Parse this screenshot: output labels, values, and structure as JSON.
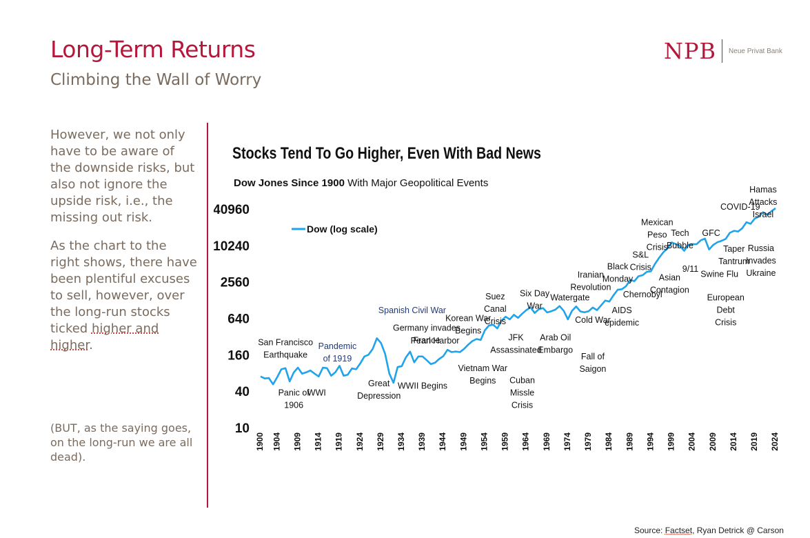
{
  "page": {
    "title": "Long-Term Returns",
    "subtitle": "Climbing the Wall of Worry",
    "logo": {
      "mark": "NPB",
      "name": "Neue Privat Bank"
    },
    "paragraph1": "However, we not only have to be aware of the downside risks, but also not ignore the upside risk, i.e., the missing out risk.",
    "paragraph2_main": "As the chart to the right shows, there have been plentiful excuses to sell, however, over the long-run stocks ticked ",
    "paragraph2_tail": "higher and higher",
    "paragraph2_end": ".",
    "note": "(BUT, as the saying goes, on the long-run we are all dead).",
    "source_prefix": "Source: ",
    "source_link": "Factset",
    "source_suffix": ", Ryan Detrick @ Carson",
    "colors": {
      "brand": "#b5173b",
      "line": "#1fa3ea",
      "body_text": "#7a6b5e"
    }
  },
  "chart_data": {
    "type": "line",
    "title": "Stocks Tend To Go Higher, Even With Bad News",
    "subtitle_bold": "Dow Jones Since 1900",
    "subtitle_rest": " With Major Geopolitical Events",
    "legend": "Dow (log scale)",
    "y_scale": "log",
    "ylim": [
      10,
      40960
    ],
    "y_ticks": [
      10,
      40,
      160,
      640,
      2560,
      10240,
      40960
    ],
    "y_tick_labels": [
      "10",
      "40",
      "160",
      "640",
      "2560",
      "10240",
      "40960"
    ],
    "xlim": [
      1900,
      2024
    ],
    "x_ticks": [
      1900,
      1904,
      1909,
      1914,
      1919,
      1924,
      1929,
      1934,
      1939,
      1944,
      1949,
      1954,
      1959,
      1964,
      1969,
      1974,
      1979,
      1984,
      1989,
      1994,
      1999,
      2004,
      2009,
      2014,
      2019,
      2024
    ],
    "series": [
      {
        "name": "Dow (log scale)",
        "x": [
          1900,
          1901,
          1902,
          1903,
          1904,
          1905,
          1906,
          1907,
          1908,
          1909,
          1910,
          1911,
          1912,
          1913,
          1914,
          1915,
          1916,
          1917,
          1918,
          1919,
          1920,
          1921,
          1922,
          1923,
          1924,
          1925,
          1926,
          1927,
          1928,
          1929,
          1930,
          1931,
          1932,
          1933,
          1934,
          1935,
          1936,
          1937,
          1938,
          1939,
          1940,
          1941,
          1942,
          1943,
          1944,
          1945,
          1946,
          1947,
          1948,
          1949,
          1950,
          1951,
          1952,
          1953,
          1954,
          1955,
          1956,
          1957,
          1958,
          1959,
          1960,
          1961,
          1962,
          1963,
          1964,
          1965,
          1966,
          1967,
          1968,
          1969,
          1970,
          1971,
          1972,
          1973,
          1974,
          1975,
          1976,
          1977,
          1978,
          1979,
          1980,
          1981,
          1982,
          1983,
          1984,
          1985,
          1986,
          1987,
          1988,
          1989,
          1990,
          1991,
          1992,
          1993,
          1994,
          1995,
          1996,
          1997,
          1998,
          1999,
          2000,
          2001,
          2002,
          2003,
          2004,
          2005,
          2006,
          2007,
          2008,
          2009,
          2010,
          2011,
          2012,
          2013,
          2014,
          2015,
          2016,
          2017,
          2018,
          2019,
          2020,
          2021,
          2022,
          2023,
          2024
        ],
        "values": [
          70,
          65,
          66,
          52,
          68,
          92,
          96,
          58,
          82,
          98,
          78,
          82,
          88,
          78,
          70,
          98,
          96,
          72,
          82,
          105,
          72,
          75,
          95,
          92,
          115,
          150,
          160,
          200,
          300,
          250,
          165,
          78,
          55,
          100,
          104,
          145,
          180,
          120,
          150,
          150,
          130,
          112,
          118,
          136,
          152,
          193,
          177,
          181,
          177,
          200,
          235,
          269,
          291,
          281,
          404,
          488,
          500,
          436,
          584,
          679,
          616,
          731,
          652,
          763,
          874,
          969,
          786,
          905,
          944,
          800,
          839,
          890,
          1020,
          850,
          616,
          852,
          1005,
          831,
          805,
          839,
          964,
          875,
          1047,
          1259,
          1212,
          1547,
          1896,
          1939,
          2169,
          2753,
          2634,
          3169,
          3301,
          3754,
          3834,
          5117,
          6448,
          7908,
          9181,
          11497,
          10787,
          10021,
          8342,
          10454,
          10783,
          10718,
          12463,
          13265,
          8776,
          10428,
          11578,
          12218,
          13104,
          16577,
          17823,
          17425,
          19763,
          24719,
          23327,
          28538,
          30606,
          36338,
          33147,
          37690,
          42000
        ]
      }
    ],
    "annotations": [
      {
        "text": "San Francisco\nEarthquake",
        "year": 1906,
        "value": 230,
        "color": "#111111"
      },
      {
        "text": "Panic of\n1906",
        "year": 1908,
        "value": 34,
        "color": "#111111"
      },
      {
        "text": "WWI",
        "year": 1913.5,
        "value": 34,
        "color": "#111111"
      },
      {
        "text": "Pandemic\nof 1919",
        "year": 1918.5,
        "value": 200,
        "color": "#1f3a7a"
      },
      {
        "text": "Spanish Civil War",
        "year": 1936.5,
        "value": 780,
        "color": "#1f3a7a"
      },
      {
        "text": "Great\nDepression",
        "year": 1928.5,
        "value": 48,
        "color": "#111111"
      },
      {
        "text": "Germany invades\nFrance",
        "year": 1940,
        "value": 400,
        "color": "#111111"
      },
      {
        "text": "WWII Begins",
        "year": 1939,
        "value": 44,
        "color": "#111111"
      },
      {
        "text": "Pearl Harbor",
        "year": 1942,
        "value": 245,
        "color": "#111111"
      },
      {
        "text": "Korean War\nBegins",
        "year": 1950,
        "value": 580,
        "color": "#111111"
      },
      {
        "text": "Vietnam War\nBegins",
        "year": 1953.5,
        "value": 86,
        "color": "#111111"
      },
      {
        "text": "Suez\nCanal\nCrisis",
        "year": 1956.5,
        "value": 1320,
        "color": "#111111"
      },
      {
        "text": "JFK\nAssassinated",
        "year": 1961.5,
        "value": 275,
        "color": "#111111"
      },
      {
        "text": "Cuban\nMissle\nCrisis",
        "year": 1963,
        "value": 54,
        "color": "#111111"
      },
      {
        "text": "Six Day\nWar",
        "year": 1966,
        "value": 1480,
        "color": "#111111"
      },
      {
        "text": "Arab Oil\nEmbargo",
        "year": 1971,
        "value": 275,
        "color": "#111111"
      },
      {
        "text": "Watergate",
        "year": 1974.5,
        "value": 1270,
        "color": "#111111"
      },
      {
        "text": "Iranian\nRevolution",
        "year": 1979.5,
        "value": 3000,
        "color": "#111111"
      },
      {
        "text": "Cold War",
        "year": 1980,
        "value": 540,
        "color": "#111111"
      },
      {
        "text": "Fall of\nSaigon",
        "year": 1980,
        "value": 135,
        "color": "#111111"
      },
      {
        "text": "Black\nMonday",
        "year": 1986,
        "value": 4100,
        "color": "#111111"
      },
      {
        "text": "AIDS\nepidemic",
        "year": 1987,
        "value": 780,
        "color": "#111111"
      },
      {
        "text": "S&L\nCrisis",
        "year": 1991.5,
        "value": 6400,
        "color": "#111111"
      },
      {
        "text": "Chernobyl",
        "year": 1992,
        "value": 1420,
        "color": "#111111"
      },
      {
        "text": "Mexican\nPeso\nCrisis",
        "year": 1995.5,
        "value": 22000,
        "color": "#111111"
      },
      {
        "text": "Asian\nContagion",
        "year": 1998.5,
        "value": 2700,
        "color": "#111111"
      },
      {
        "text": "Tech\nBubble",
        "year": 2001,
        "value": 14800,
        "color": "#111111"
      },
      {
        "text": "9/11",
        "year": 2003.5,
        "value": 3750,
        "color": "#111111"
      },
      {
        "text": "GFC",
        "year": 2008.5,
        "value": 14700,
        "color": "#111111"
      },
      {
        "text": "Swine Flu",
        "year": 2010.5,
        "value": 3100,
        "color": "#111111"
      },
      {
        "text": "European\nDebt\nCrisis",
        "year": 2012,
        "value": 1260,
        "color": "#111111"
      },
      {
        "text": "Taper\nTantrum",
        "year": 2014,
        "value": 8000,
        "color": "#111111"
      },
      {
        "text": "COVID-19",
        "year": 2015.5,
        "value": 40000,
        "color": "#111111"
      },
      {
        "text": "Russia\nInvades\nUkraine",
        "year": 2020.5,
        "value": 8300,
        "color": "#111111"
      },
      {
        "text": "Hamas\nAttacks\nIsrael",
        "year": 2021,
        "value": 77000,
        "color": "#111111"
      }
    ]
  }
}
